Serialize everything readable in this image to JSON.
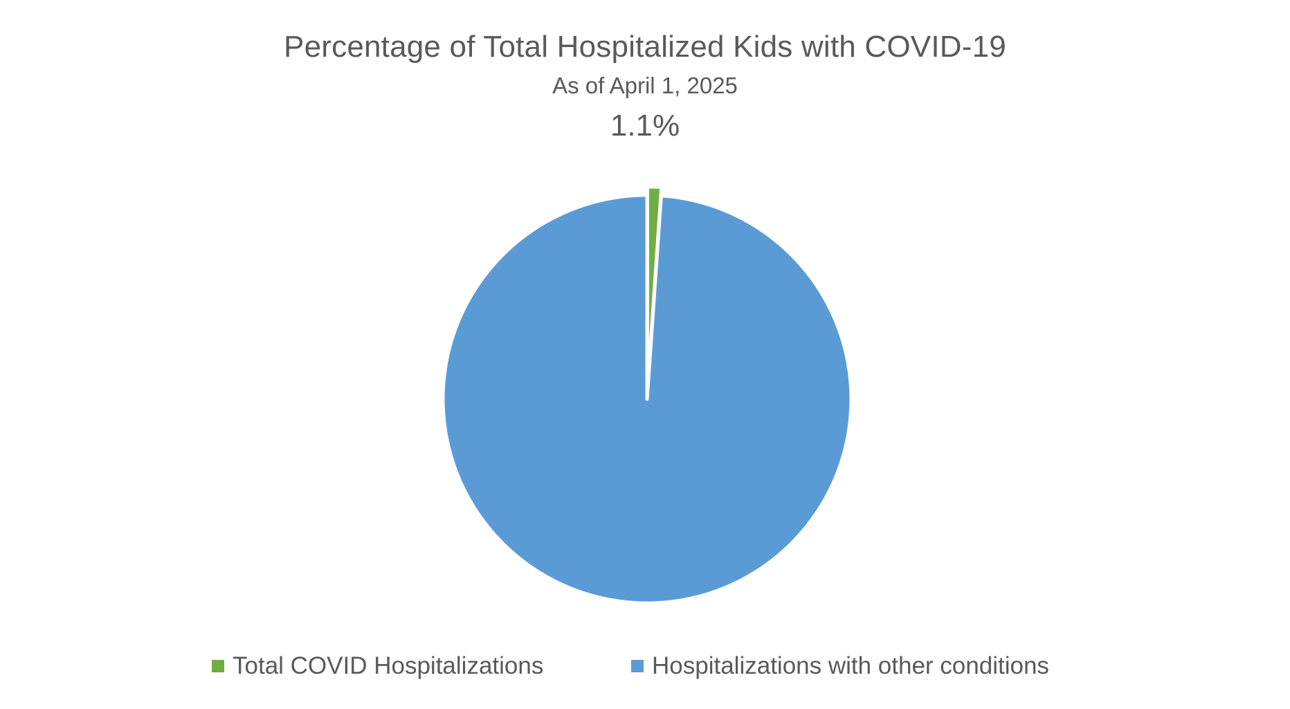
{
  "chart_data": {
    "type": "pie",
    "title": "Percentage of Total Hospitalized Kids with COVID-19",
    "subtitle": "As of April 1, 2025",
    "highlight_value": "1.1%",
    "slices": [
      {
        "name": "Total COVID Hospitalizations",
        "value": 1.1,
        "color": "#70AD47",
        "exploded": true
      },
      {
        "name": "Hospitalizations with other conditions",
        "value": 98.9,
        "color": "#5B9BD5",
        "exploded": false
      }
    ],
    "legend_position": "bottom",
    "start_angle_deg": 0,
    "direction": "clockwise"
  }
}
